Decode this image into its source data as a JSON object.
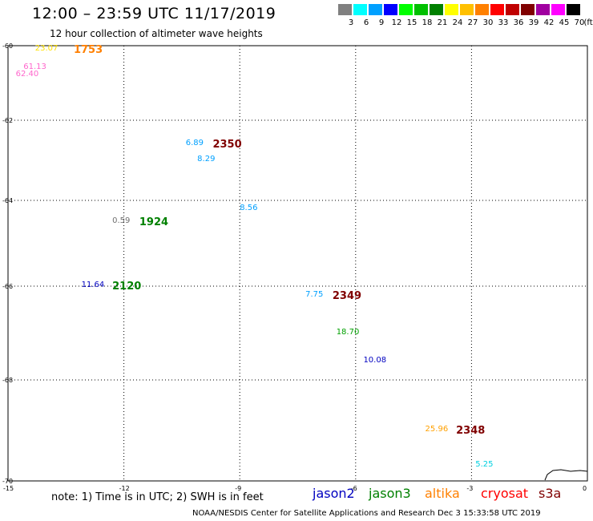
{
  "title": "12:00 – 23:59 UTC 11/17/2019",
  "subtitle": "12 hour collection of altimeter wave heights",
  "color_scale": {
    "units_label": "(ft)",
    "bins": [
      {
        "label": "3",
        "color": "#808080"
      },
      {
        "label": "6",
        "color": "#00ffff"
      },
      {
        "label": "9",
        "color": "#00a0ff"
      },
      {
        "label": "12",
        "color": "#0000ff"
      },
      {
        "label": "15",
        "color": "#00ff00"
      },
      {
        "label": "18",
        "color": "#00c000"
      },
      {
        "label": "21",
        "color": "#008000"
      },
      {
        "label": "24",
        "color": "#ffff00"
      },
      {
        "label": "27",
        "color": "#ffc000"
      },
      {
        "label": "30",
        "color": "#ff8000"
      },
      {
        "label": "33",
        "color": "#ff0000"
      },
      {
        "label": "36",
        "color": "#c00000"
      },
      {
        "label": "39",
        "color": "#800000"
      },
      {
        "label": "42",
        "color": "#a000a0"
      },
      {
        "label": "45",
        "color": "#ff00ff"
      },
      {
        "label": "70",
        "color": "#000000"
      }
    ]
  },
  "axes": {
    "lat_ticks": [
      {
        "label": "-60",
        "value": -60
      },
      {
        "label": "-62",
        "value": -62
      },
      {
        "label": "-64",
        "value": -64
      },
      {
        "label": "-66",
        "value": -66
      },
      {
        "label": "-68",
        "value": -68
      },
      {
        "label": "-70",
        "value": -70
      }
    ],
    "lon_ticks": [
      {
        "label": "-15",
        "value": -15
      },
      {
        "label": "-12",
        "value": -12
      },
      {
        "label": "-9",
        "value": -9
      },
      {
        "label": "-6",
        "value": -6
      },
      {
        "label": "-3",
        "value": -3
      },
      {
        "label": "0",
        "value": 0
      }
    ]
  },
  "observations": [
    {
      "text": "23.07",
      "kind": "swh",
      "color": "#ffe000",
      "lon": -14.3,
      "lat": -60.1
    },
    {
      "text": "1753",
      "kind": "time",
      "color": "#ff8000",
      "lon": -13.3,
      "lat": -60.1
    },
    {
      "text": "61.13",
      "kind": "swh",
      "color": "#ff66cc",
      "lon": -14.6,
      "lat": -60.6
    },
    {
      "text": "62.40",
      "kind": "swh",
      "color": "#ff66cc",
      "lon": -14.8,
      "lat": -60.8
    },
    {
      "text": "6.89",
      "kind": "swh",
      "color": "#00a0ff",
      "lon": -10.4,
      "lat": -62.6
    },
    {
      "text": "2350",
      "kind": "time",
      "color": "#800000",
      "lon": -9.7,
      "lat": -62.6
    },
    {
      "text": "8.29",
      "kind": "swh",
      "color": "#00a0ff",
      "lon": -10.1,
      "lat": -63.0
    },
    {
      "text": "8.56",
      "kind": "swh",
      "color": "#00a0ff",
      "lon": -9.0,
      "lat": -64.2
    },
    {
      "text": "0.59",
      "kind": "swh",
      "color": "#707070",
      "lon": -12.3,
      "lat": -64.5
    },
    {
      "text": "1924",
      "kind": "time",
      "color": "#008000",
      "lon": -11.6,
      "lat": -64.5
    },
    {
      "text": "11.64",
      "kind": "swh",
      "color": "#0000c0",
      "lon": -13.1,
      "lat": -66.0
    },
    {
      "text": "2120",
      "kind": "time",
      "color": "#008000",
      "lon": -12.3,
      "lat": -66.0
    },
    {
      "text": "7.75",
      "kind": "swh",
      "color": "#00a0ff",
      "lon": -7.3,
      "lat": -66.2
    },
    {
      "text": "2349",
      "kind": "time",
      "color": "#800000",
      "lon": -6.6,
      "lat": -66.2
    },
    {
      "text": "18.70",
      "kind": "swh",
      "color": "#00a000",
      "lon": -6.5,
      "lat": -67.0
    },
    {
      "text": "10.08",
      "kind": "swh",
      "color": "#0000c0",
      "lon": -5.8,
      "lat": -67.6
    },
    {
      "text": "25.96",
      "kind": "swh",
      "color": "#ffa000",
      "lon": -4.2,
      "lat": -69.0
    },
    {
      "text": "2348",
      "kind": "time",
      "color": "#800000",
      "lon": -3.4,
      "lat": -69.0
    },
    {
      "text": "5.25",
      "kind": "swh",
      "color": "#00d0e0",
      "lon": -2.9,
      "lat": -69.7
    }
  ],
  "note": "note: 1) Time is in UTC; 2) SWH is in feet",
  "satellite_legend": [
    {
      "name": "jason2",
      "color": "#0000c0"
    },
    {
      "name": "jason3",
      "color": "#008000"
    },
    {
      "name": "altika",
      "color": "#ff8000"
    },
    {
      "name": "cryosat",
      "color": "#ff0000"
    },
    {
      "name": "s3a",
      "color": "#800000"
    }
  ],
  "credit": "NOAA/NESDIS Center for Satellite Applications and Research   Dec  3 15:33:58 UTC 2019"
}
